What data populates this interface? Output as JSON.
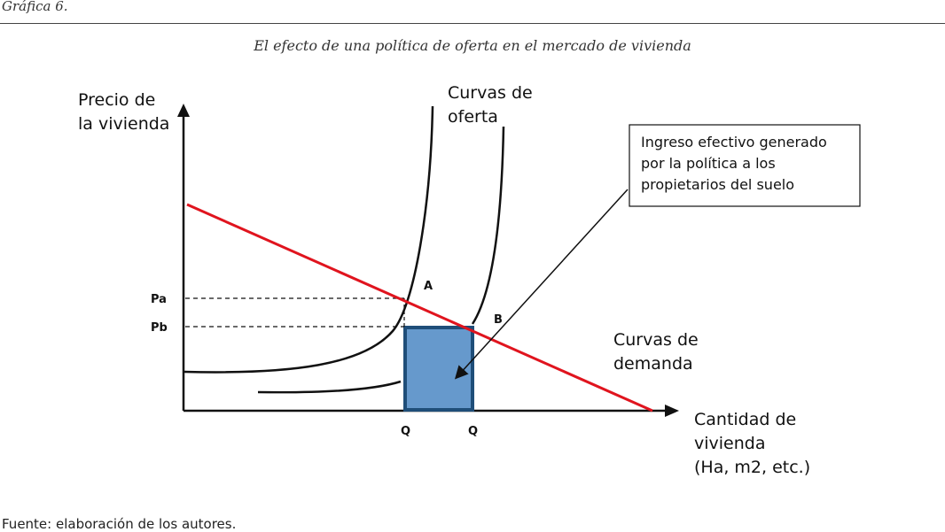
{
  "figure_label": "Gráfica 6.",
  "title": "El efecto de una política de oferta en el mercado de vivienda",
  "source_note": "Fuente: elaboración de los autores.",
  "y_axis_label": [
    "Precio de",
    "la vivienda"
  ],
  "x_axis_label": [
    "Cantidad de",
    "vivienda",
    "(Ha, m2, etc.)"
  ],
  "supply_label": [
    "Curvas de",
    "oferta"
  ],
  "demand_label": [
    "Curvas de",
    "demanda"
  ],
  "callout_text": [
    "Ingreso efectivo generado",
    "por la política a los",
    "propietarios del suelo"
  ],
  "price_ticks": {
    "pa": "Pa",
    "pb": "Pb"
  },
  "quantity_ticks": {
    "q1": "Q",
    "q2": "Q"
  },
  "points": {
    "a": "A",
    "b": "B"
  },
  "colors": {
    "demand": "#e0141e",
    "rect_fill": "#6699cc",
    "rect_stroke": "#1f4e79",
    "axis": "#111111"
  }
}
